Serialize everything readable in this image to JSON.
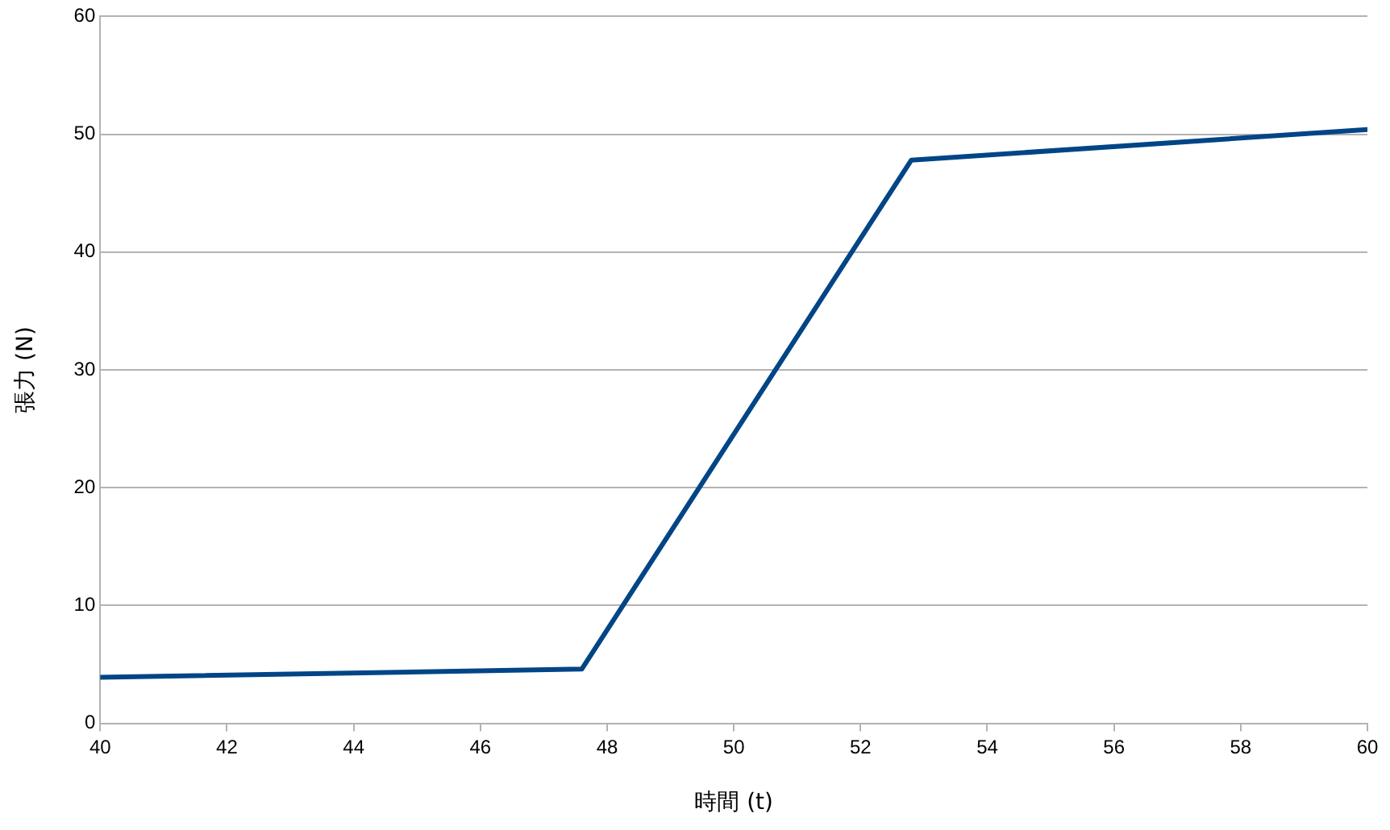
{
  "chart_data": {
    "type": "line",
    "xlabel": "時間 (t)",
    "ylabel": "張力 (N)",
    "series": [
      {
        "color": "#004586",
        "x": [
          40,
          47.6,
          52.8,
          60
        ],
        "values": [
          3.9,
          4.6,
          47.8,
          50.4
        ]
      }
    ],
    "xlim": [
      40,
      60
    ],
    "xticks": [
      40,
      42,
      44,
      46,
      48,
      50,
      52,
      54,
      56,
      58,
      60
    ],
    "ylim": [
      0,
      60
    ],
    "yticks": [
      0,
      10,
      20,
      30,
      40,
      50,
      60
    ],
    "grid": "y",
    "legend": false,
    "marker": "none",
    "line_style": "solid"
  }
}
